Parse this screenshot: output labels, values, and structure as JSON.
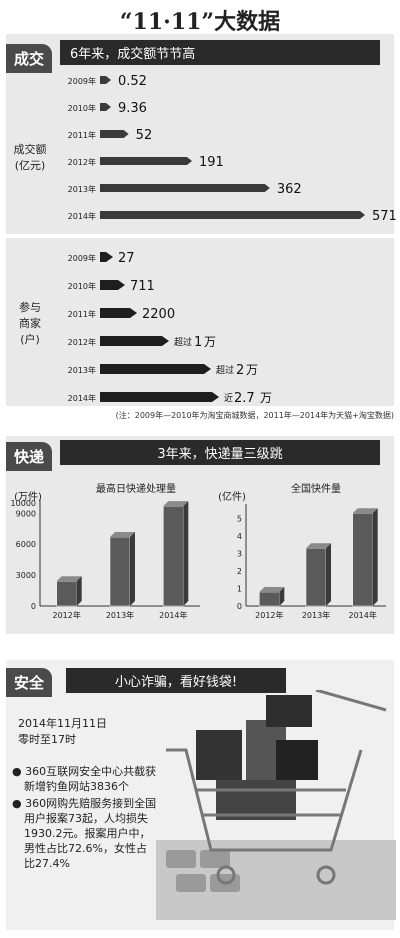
{
  "page_title": "“11·11”大数据",
  "section1": {
    "tab": "成交",
    "banner": "6年来，成交额节节高",
    "sales_label": [
      "成交额",
      "(亿元)"
    ],
    "merchant_label": [
      "参与",
      "商家",
      "(户)"
    ],
    "note": "(注：2009年—2010年为淘宝商城数据，2011年—2014年为天猫+淘宝数据)"
  },
  "section2": {
    "tab": "快递",
    "banner": "3年来，快递量三级跳",
    "left_title": "最高日快递处理量",
    "left_unit": "(万件)",
    "right_title": "全国快件量",
    "right_unit": "(亿件)"
  },
  "section3": {
    "tab": "安全",
    "banner": "小心诈骗，看好钱袋!",
    "date": "2014年11月11日",
    "time": "零时至17时",
    "bullet1_lines": [
      "360互联网安全中心共截获",
      "新增钓鱼网站3836个"
    ],
    "bullet2_lines": [
      "360网购先赔服务接到全国",
      "用户报案73起，人均损失",
      "1930.2元。报案用户中，",
      "男性占比72.6%，女性占",
      "比27.4%"
    ]
  },
  "chart_data": [
    {
      "type": "bar",
      "orientation": "horizontal",
      "categories": [
        "2009年",
        "2010年",
        "2011年",
        "2012年",
        "2013年",
        "2014年"
      ],
      "values": [
        0.52,
        9.36,
        52,
        191,
        362,
        571
      ],
      "labels": [
        "0.52",
        "9.36",
        "52",
        "191",
        "362",
        "571"
      ],
      "ylabel": "成交额(亿元)"
    },
    {
      "type": "bar",
      "orientation": "horizontal",
      "categories": [
        "2009年",
        "2010年",
        "2011年",
        "2012年",
        "2013年",
        "2014年"
      ],
      "values": [
        27,
        711,
        2200,
        10000,
        20000,
        27000
      ],
      "labels": [
        {
          "prefix": "",
          "num": "27",
          "unit": ""
        },
        {
          "prefix": "",
          "num": "711",
          "unit": ""
        },
        {
          "prefix": "",
          "num": "2200",
          "unit": ""
        },
        {
          "prefix": "超过",
          "num": "1",
          "unit": "万"
        },
        {
          "prefix": "超过",
          "num": "2",
          "unit": "万"
        },
        {
          "prefix": "近",
          "num": "2.7",
          "unit": "万"
        }
      ],
      "ylabel": "参与商家(户)"
    },
    {
      "type": "bar",
      "title": "最高日快递处理量",
      "categories": [
        "2012年",
        "2013年",
        "2014年"
      ],
      "values": [
        2400,
        6700,
        9700
      ],
      "yticks": [
        "0",
        "3000",
        "6000",
        "9000",
        "10000"
      ],
      "ytick_values": [
        0,
        3000,
        6000,
        9000,
        10000
      ],
      "ylim": [
        0,
        10000
      ],
      "ylabel": "(万件)"
    },
    {
      "type": "bar",
      "title": "全国快件量",
      "categories": [
        "2012年",
        "2013年",
        "2014年"
      ],
      "values": [
        0.8,
        3.3,
        5.3
      ],
      "yticks": [
        "0",
        "1",
        "2",
        "3",
        "4",
        "5"
      ],
      "ytick_values": [
        0,
        1,
        2,
        3,
        4,
        5
      ],
      "ylim": [
        0,
        5.6
      ],
      "ylabel": "(亿件)"
    }
  ]
}
